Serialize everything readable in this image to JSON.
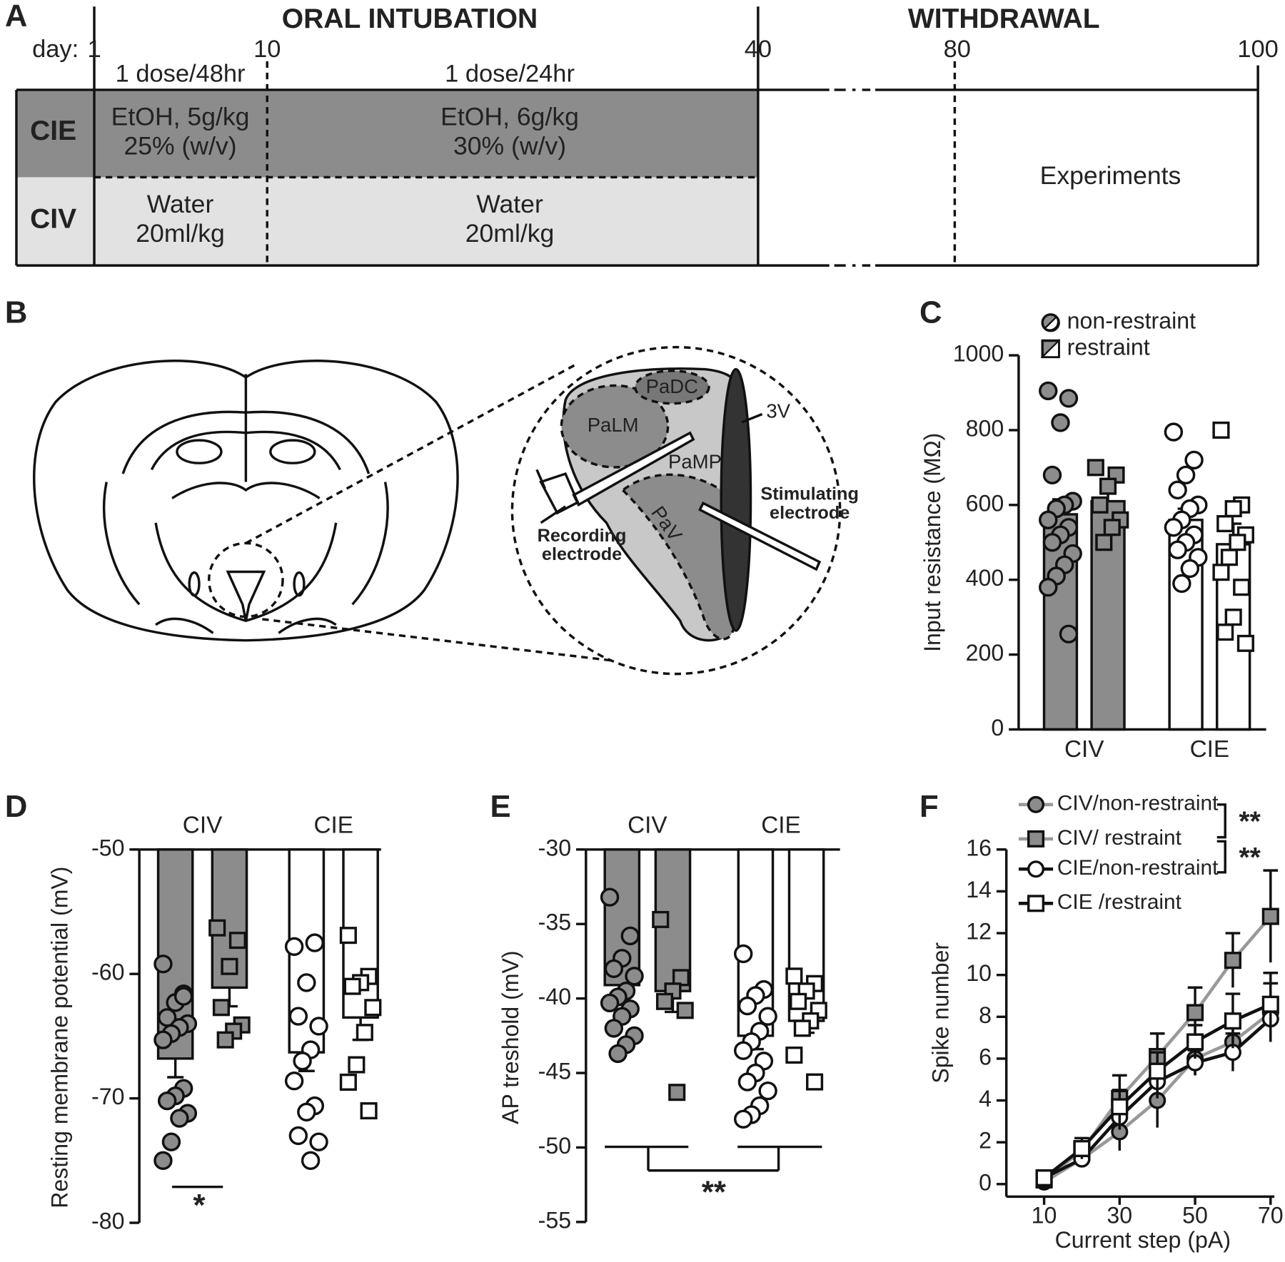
{
  "timeline": {
    "panel": "A",
    "phase1": "ORAL INTUBATION",
    "phase2": "WITHDRAWAL",
    "day_label": "day:",
    "days": [
      1,
      10,
      40,
      80,
      100
    ],
    "dose1": "1 dose/48hr",
    "dose2": "1 dose/24hr",
    "rows": [
      {
        "label": "CIE",
        "cells": [
          [
            "EtOH, 5g/kg",
            "25% (w/v)"
          ],
          [
            "EtOH, 6g/kg",
            "30% (w/v)"
          ]
        ]
      },
      {
        "label": "CIV",
        "cells": [
          [
            "Water",
            "20ml/kg"
          ],
          [
            "Water",
            "20ml/kg"
          ]
        ]
      }
    ],
    "experiments": "Experiments"
  },
  "diagram": {
    "panel": "B",
    "labels": [
      "PaDC",
      "PaLM",
      "PaMP",
      "PaV",
      "3V"
    ],
    "stimulating": [
      "Stimulating",
      "electrode"
    ],
    "recording": [
      "Recording",
      "electrode"
    ]
  },
  "chart_data": [
    {
      "type": "bar",
      "panel": "C",
      "ylabel": "Input resistance (MΩ)",
      "categories": [
        "CIV",
        "CIE"
      ],
      "category_colors": [
        "#8c8c8c",
        "#ffffff"
      ],
      "x_axis_at": "bottom",
      "ylim": [
        0,
        1000
      ],
      "yticks": [
        0,
        200,
        400,
        600,
        800,
        1000
      ],
      "series": [
        {
          "name": "non-restraint",
          "marker": "circle",
          "values": [
            575,
            560
          ],
          "errors": [
            40,
            30
          ],
          "points": [
            [
              905,
              885,
              820,
              680,
              610,
              600,
              590,
              560,
              540,
              520,
              500,
              470,
              440,
              410,
              380,
              255
            ],
            [
              795,
              720,
              680,
              640,
              600,
              590,
              560,
              540,
              520,
              500,
              480,
              460,
              430,
              390
            ]
          ]
        },
        {
          "name": "restraint",
          "marker": "square",
          "values": [
            610,
            495
          ],
          "errors": [
            25,
            55
          ],
          "points": [
            [
              700,
              680,
              650,
              600,
              560,
              540,
              500
            ],
            [
              800,
              600,
              590,
              550,
              520,
              500,
              460,
              420,
              380,
              300,
              260,
              230
            ]
          ]
        }
      ]
    },
    {
      "type": "bar",
      "panel": "D",
      "ylabel": "Resting membrane potential (mV)",
      "categories": [
        "CIV",
        "CIE"
      ],
      "category_colors": [
        "#8c8c8c",
        "#ffffff"
      ],
      "x_axis_at": "top",
      "ylim": [
        -80,
        -50
      ],
      "yticks": [
        -50,
        -60,
        -70,
        -80
      ],
      "significance": "*",
      "series": [
        {
          "marker": "circle",
          "values": [
            -66.8,
            -66.3
          ],
          "errors": [
            1.5,
            1.5
          ],
          "points": [
            [
              -59.2,
              -61.6,
              -62.3,
              -63.5,
              -64.0,
              -64.3,
              -64.8,
              -65.3,
              -69.2,
              -69.8,
              -70.2,
              -71.2,
              -71.6,
              -73.5,
              -75.0,
              -61.8
            ],
            [
              -57.8,
              -57.5,
              -60.7,
              -63.4,
              -64.2,
              -66.1,
              -67.0,
              -68.6,
              -70.6,
              -71.1,
              -73.0,
              -73.5,
              -75.0
            ]
          ]
        },
        {
          "marker": "square",
          "values": [
            -61.1,
            -63.5
          ],
          "errors": [
            1.5,
            1.8
          ],
          "points": [
            [
              -56.3,
              -57.3,
              -59.4,
              -62.7,
              -64.1,
              -64.6,
              -65.3
            ],
            [
              -56.9,
              -60.2,
              -60.7,
              -61.0,
              -62.7,
              -64.7,
              -67.3,
              -68.7,
              -71.0
            ]
          ]
        }
      ]
    },
    {
      "type": "bar",
      "panel": "E",
      "ylabel": "AP treshold (mV)",
      "categories": [
        "CIV",
        "CIE"
      ],
      "category_colors": [
        "#8c8c8c",
        "#ffffff"
      ],
      "x_axis_at": "top",
      "ylim": [
        -55,
        -30
      ],
      "yticks": [
        -30,
        -35,
        -40,
        -45,
        -50,
        -55
      ],
      "significance": "**",
      "series": [
        {
          "marker": "circle",
          "values": [
            -39.1,
            -42.5
          ],
          "errors": [
            0.7,
            0.9
          ],
          "points": [
            [
              -33.2,
              -35.8,
              -37.3,
              -38.0,
              -38.5,
              -39.5,
              -39.9,
              -40.3,
              -40.7,
              -41.2,
              -42.0,
              -42.5,
              -43.1,
              -43.7
            ],
            [
              -37.0,
              -39.4,
              -39.8,
              -40.5,
              -41.2,
              -42.2,
              -42.9,
              -43.5,
              -44.2,
              -45.0,
              -45.6,
              -46.2,
              -47.2,
              -47.8,
              -48.1
            ]
          ]
        },
        {
          "marker": "square",
          "values": [
            -39.5,
            -41.5
          ],
          "errors": [
            1.4,
            0.8
          ],
          "points": [
            [
              -34.7,
              -38.6,
              -39.5,
              -40.2,
              -40.8,
              -46.3
            ],
            [
              -38.5,
              -39.0,
              -39.5,
              -40.2,
              -40.8,
              -41.5,
              -42.0,
              -43.8,
              -45.6
            ]
          ]
        }
      ]
    },
    {
      "type": "line",
      "panel": "F",
      "xlabel": "Current step (pA)",
      "ylabel": "Spike number",
      "x": [
        10,
        20,
        30,
        40,
        50,
        60,
        70
      ],
      "xlim": [
        0,
        71
      ],
      "xticks": [
        10,
        30,
        50,
        70
      ],
      "ylim": [
        -0.6,
        16
      ],
      "yticks": [
        0,
        2,
        4,
        6,
        8,
        10,
        12,
        14,
        16
      ],
      "significance": [
        "**",
        "**"
      ],
      "series": [
        {
          "name": "CIV/non-restraint",
          "color": "#999999",
          "fill": "#8c8c8c",
          "marker": "circle",
          "values": [
            0.1,
            1.2,
            2.5,
            4.0,
            6.0,
            6.8,
            8.2
          ],
          "errors": [
            0.1,
            0.3,
            0.9,
            1.3,
            0.8,
            0.8,
            1.4
          ]
        },
        {
          "name": "CIV/ restraint",
          "color": "#999999",
          "fill": "#8c8c8c",
          "marker": "square",
          "values": [
            0.2,
            1.6,
            4.1,
            6.1,
            8.2,
            10.7,
            12.8
          ],
          "errors": [
            0.2,
            0.4,
            1.1,
            1.1,
            1.2,
            1.3,
            2.2
          ]
        },
        {
          "name": "CIE/non-restraint",
          "color": "#111111",
          "fill": "#ffffff",
          "marker": "circle",
          "values": [
            0.3,
            1.2,
            3.2,
            4.9,
            5.8,
            6.3,
            7.9
          ],
          "errors": [
            0.2,
            0.4,
            0.6,
            0.8,
            0.6,
            0.9,
            1.0
          ]
        },
        {
          "name": "CIE /restraint",
          "color": "#111111",
          "fill": "#ffffff",
          "marker": "square",
          "values": [
            0.3,
            1.7,
            3.7,
            5.4,
            6.8,
            7.8,
            8.6
          ],
          "errors": [
            0.2,
            0.5,
            0.8,
            0.9,
            0.8,
            1.3,
            1.5
          ]
        }
      ]
    }
  ]
}
